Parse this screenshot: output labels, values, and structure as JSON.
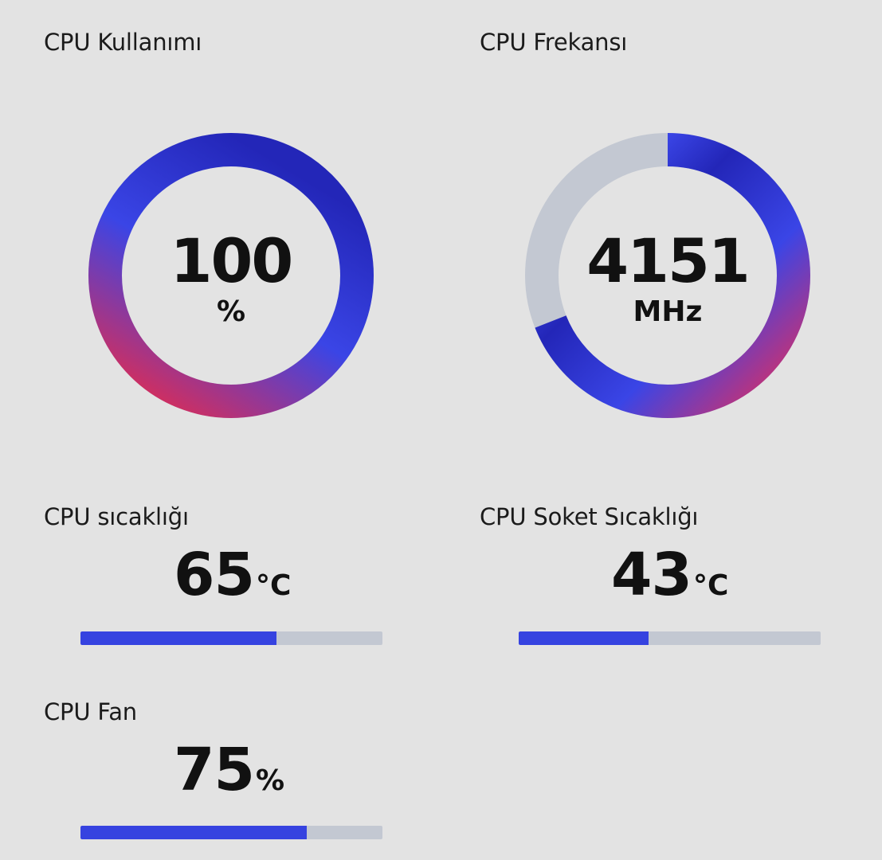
{
  "colors": {
    "background": "#e3e3e3",
    "accent": "#3643e0",
    "track": "#c3c8d2",
    "gradient_red": "#ee2a45",
    "gradient_blue": "#3a45e6",
    "gradient_dark_blue": "#2326b8"
  },
  "cpu_usage": {
    "label": "CPU Kullanımı",
    "value": "100",
    "unit": "%",
    "fraction": 1.0
  },
  "cpu_frequency": {
    "label": "CPU Frekansı",
    "value": "4151",
    "unit": "MHz",
    "fraction": 0.69
  },
  "cpu_temperature": {
    "label": "CPU sıcaklığı",
    "value": "65",
    "unit": "°C",
    "fraction": 0.65
  },
  "cpu_socket_temperature": {
    "label": "CPU Soket Sıcaklığı",
    "value": "43",
    "unit": "°C",
    "fraction": 0.43
  },
  "cpu_fan": {
    "label": "CPU Fan",
    "value": "75",
    "unit": "%",
    "fraction": 0.75
  }
}
